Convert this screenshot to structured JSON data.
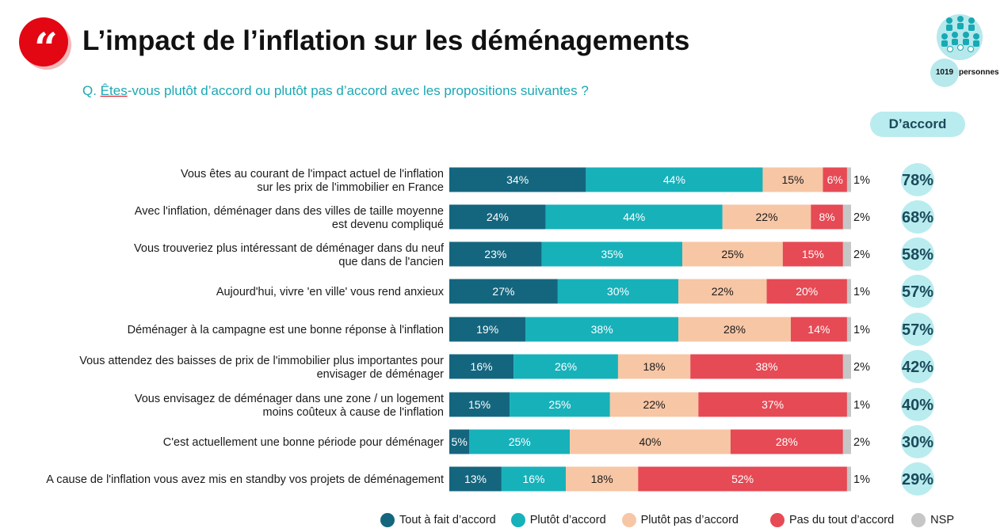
{
  "header": {
    "title": "L’impact de l’inflation sur les déménagements",
    "question_prefix": "Q. ",
    "question_underlined": "Êtes",
    "question_rest": "-vous plutôt d’accord ou plutôt pas d’accord avec les propositions suivantes ?",
    "sample_count": "1019",
    "sample_label": "personnes",
    "daccord_header": "D’accord"
  },
  "colors": {
    "tout_a_fait": "#14667e",
    "plutot": "#17b1ba",
    "plutot_pas": "#f7c6a5",
    "pas_du_tout": "#e64a55",
    "nsp": "#c6c6c6",
    "total_circle": "#b9ecef",
    "accent_red": "#e30613"
  },
  "chart_data": {
    "type": "bar",
    "orientation": "horizontal",
    "stacked": true,
    "series": [
      {
        "name": "Tout à fait d’accord",
        "color": "#14667e",
        "text_color": "#ffffff",
        "values": [
          34,
          24,
          23,
          27,
          19,
          16,
          15,
          5,
          13
        ]
      },
      {
        "name": "Plutôt d’accord",
        "color": "#17b1ba",
        "text_color": "#ffffff",
        "values": [
          44,
          44,
          35,
          30,
          38,
          26,
          25,
          25,
          16
        ]
      },
      {
        "name": "Plutôt pas d’accord",
        "color": "#f7c6a5",
        "text_color": "#1a1a1a",
        "values": [
          15,
          22,
          25,
          22,
          28,
          18,
          22,
          40,
          18
        ]
      },
      {
        "name": "Pas du tout d’accord",
        "color": "#e64a55",
        "text_color": "#ffffff",
        "values": [
          6,
          8,
          15,
          20,
          14,
          38,
          37,
          28,
          52
        ]
      },
      {
        "name": "NSP",
        "color": "#c6c6c6",
        "text_color": "#1a1a1a",
        "values": [
          1,
          2,
          2,
          1,
          1,
          2,
          1,
          2,
          1
        ]
      }
    ],
    "categories": [
      [
        "Vous êtes au courant de l'impact actuel de l'inflation",
        "sur les prix de l'immobilier en France"
      ],
      [
        "Avec l'inflation, déménager dans des villes de taille moyenne",
        "est devenu compliqué"
      ],
      [
        "Vous trouveriez plus intéressant de déménager dans du neuf",
        "que dans de l'ancien"
      ],
      [
        "Aujourd'hui, vivre 'en ville' vous rend anxieux"
      ],
      [
        "Déménager à la campagne est une bonne réponse à l'inflation"
      ],
      [
        "Vous attendez des baisses de prix de l'immobilier plus importantes pour",
        "envisager de déménager"
      ],
      [
        "Vous envisagez de déménager dans une zone / un logement",
        "moins coûteux à cause de l'inflation"
      ],
      [
        "C'est actuellement une bonne période pour déménager"
      ],
      [
        "A cause de l'inflation vous avez mis en standby vos projets de déménagement"
      ]
    ],
    "totals_daccord": [
      "78%",
      "68%",
      "58%",
      "57%",
      "57%",
      "42%",
      "40%",
      "30%",
      "29%"
    ],
    "value_format": "percent",
    "legend_position": "bottom"
  }
}
